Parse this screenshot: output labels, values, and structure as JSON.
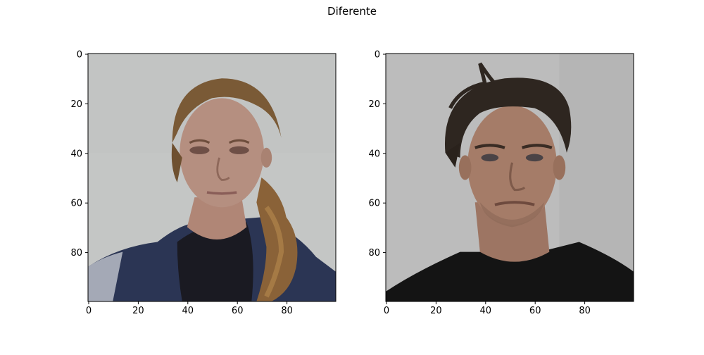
{
  "figure": {
    "suptitle": "Diferente",
    "panels": [
      {
        "id": "left",
        "image_label": "photo-woman-face",
        "xticks": [
          "0",
          "20",
          "40",
          "60",
          "80"
        ],
        "yticks": [
          "0",
          "20",
          "40",
          "60",
          "80"
        ],
        "x_range": [
          0,
          99
        ],
        "y_range": [
          0,
          99
        ],
        "colors": {
          "background": "#c4c6c5",
          "hair": "#7a5a36",
          "skin": "#b58f80",
          "hoodie": "#2b3554",
          "shirt": "#1a1a22"
        }
      },
      {
        "id": "right",
        "image_label": "photo-man-face",
        "xticks": [
          "0",
          "20",
          "40",
          "60",
          "80"
        ],
        "yticks": [
          "0",
          "20",
          "40",
          "60",
          "80"
        ],
        "x_range": [
          0,
          99
        ],
        "y_range": [
          0,
          99
        ],
        "colors": {
          "background": "#bcbcbc",
          "hair": "#2e2620",
          "skin": "#a57c68",
          "shirt": "#141414"
        }
      }
    ]
  }
}
